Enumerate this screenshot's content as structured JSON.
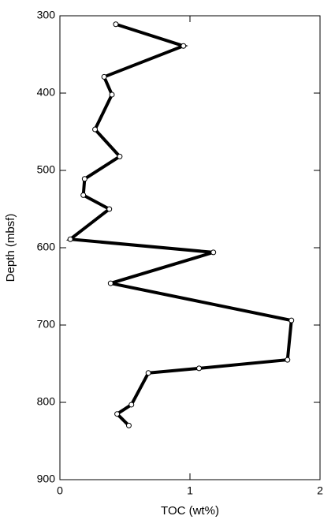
{
  "chart_data": {
    "type": "line",
    "xlabel": "TOC (wt%)",
    "ylabel": "Depth (mbsf)",
    "x": [
      0.43,
      0.95,
      0.34,
      0.4,
      0.27,
      0.46,
      0.19,
      0.18,
      0.38,
      0.08,
      1.18,
      0.39,
      1.78,
      1.75,
      1.07,
      0.68,
      0.55,
      0.44,
      0.53
    ],
    "values": [
      311,
      339,
      379,
      402,
      447,
      482,
      511,
      532,
      550,
      589,
      606,
      646,
      694,
      745,
      756,
      762,
      803,
      815,
      830
    ],
    "color": "#000000",
    "xlim": [
      0,
      2
    ],
    "xticks": [
      0,
      1,
      2
    ],
    "ylim": [
      300,
      900
    ],
    "yticks": [
      300,
      400,
      500,
      600,
      700,
      800,
      900
    ],
    "y_reversed": true
  }
}
